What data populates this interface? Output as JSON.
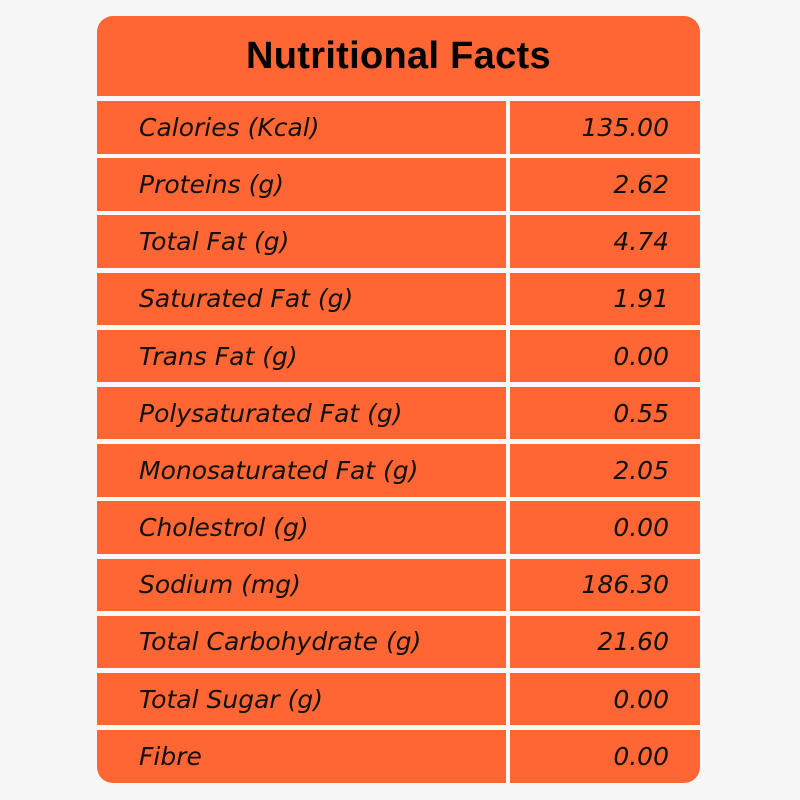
{
  "title": "Nutritional Facts",
  "colors": {
    "accent": "#ff6633",
    "background": "#f7f7f7"
  },
  "rows": [
    {
      "label": "Calories (Kcal)",
      "value": "135.00"
    },
    {
      "label": "Proteins (g)",
      "value": "2.62"
    },
    {
      "label": "Total Fat (g)",
      "value": "4.74"
    },
    {
      "label": "Saturated Fat (g)",
      "value": "1.91"
    },
    {
      "label": "Trans Fat (g)",
      "value": "0.00"
    },
    {
      "label": "Polysaturated Fat (g)",
      "value": "0.55"
    },
    {
      "label": "Monosaturated Fat (g)",
      "value": "2.05"
    },
    {
      "label": "Cholestrol (g)",
      "value": "0.00"
    },
    {
      "label": "Sodium (mg)",
      "value": "186.30"
    },
    {
      "label": "Total Carbohydrate (g)",
      "value": "21.60"
    },
    {
      "label": "Total Sugar (g)",
      "value": "0.00"
    },
    {
      "label": "Fibre",
      "value": "0.00"
    }
  ]
}
